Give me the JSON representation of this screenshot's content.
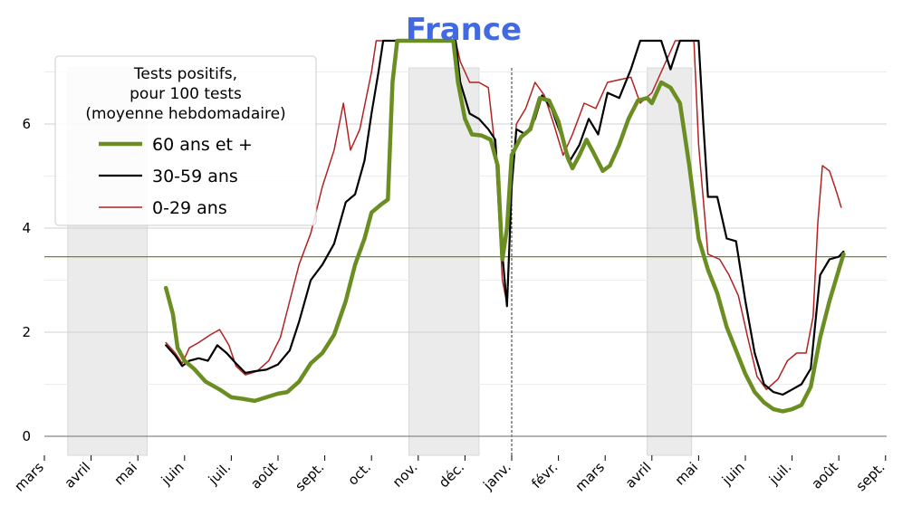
{
  "chart_data": {
    "type": "line",
    "title": "France",
    "xlabel": "",
    "ylabel": "",
    "ylim": [
      0,
      7.5
    ],
    "yticks": [
      0,
      2,
      4,
      6
    ],
    "x_tick_labels": [
      "mars",
      "avril",
      "mai",
      "juin",
      "juil.",
      "août",
      "sept.",
      "oct.",
      "nov.",
      "déc.",
      "janv.",
      "févr.",
      "mars",
      "avril",
      "mai",
      "juin",
      "juil.",
      "août",
      "sept."
    ],
    "legend": {
      "title_lines": [
        "Tests positifs,",
        "pour 100 tests",
        "(moyenne hebdomadaire)"
      ],
      "placement": "top-left"
    },
    "reference_line": {
      "value": 3.45,
      "color": "#6b8e23"
    },
    "year_boundary_month_index": 10,
    "shaded_periods": [
      [
        0.5,
        2.2
      ],
      [
        7.8,
        9.3
      ],
      [
        12.9,
        13.85
      ]
    ],
    "grid": true,
    "series": [
      {
        "name": "60 ans et +",
        "color": "#6b8e23",
        "points": [
          [
            2.6,
            2.85
          ],
          [
            2.75,
            2.35
          ],
          [
            2.85,
            1.7
          ],
          [
            3.0,
            1.45
          ],
          [
            3.2,
            1.3
          ],
          [
            3.45,
            1.05
          ],
          [
            3.75,
            0.9
          ],
          [
            4.0,
            0.75
          ],
          [
            4.25,
            0.72
          ],
          [
            4.5,
            0.68
          ],
          [
            4.75,
            0.75
          ],
          [
            5.0,
            0.82
          ],
          [
            5.2,
            0.85
          ],
          [
            5.45,
            1.05
          ],
          [
            5.7,
            1.4
          ],
          [
            5.95,
            1.6
          ],
          [
            6.2,
            1.95
          ],
          [
            6.45,
            2.6
          ],
          [
            6.65,
            3.3
          ],
          [
            6.85,
            3.8
          ],
          [
            7.0,
            4.3
          ],
          [
            7.2,
            4.45
          ],
          [
            7.35,
            4.55
          ],
          [
            7.45,
            6.8
          ],
          [
            7.55,
            8.0
          ],
          [
            8.75,
            8.0
          ],
          [
            8.85,
            6.8
          ],
          [
            9.0,
            6.1
          ],
          [
            9.15,
            5.8
          ],
          [
            9.35,
            5.78
          ],
          [
            9.55,
            5.7
          ],
          [
            9.7,
            5.2
          ],
          [
            9.8,
            3.4
          ],
          [
            9.9,
            4.0
          ],
          [
            10.0,
            5.4
          ],
          [
            10.2,
            5.75
          ],
          [
            10.4,
            5.9
          ],
          [
            10.6,
            6.5
          ],
          [
            10.8,
            6.45
          ],
          [
            11.0,
            6.05
          ],
          [
            11.2,
            5.35
          ],
          [
            11.3,
            5.15
          ],
          [
            11.45,
            5.4
          ],
          [
            11.6,
            5.7
          ],
          [
            11.75,
            5.45
          ],
          [
            11.95,
            5.1
          ],
          [
            12.1,
            5.2
          ],
          [
            12.3,
            5.6
          ],
          [
            12.5,
            6.1
          ],
          [
            12.7,
            6.45
          ],
          [
            12.9,
            6.5
          ],
          [
            13.0,
            6.4
          ],
          [
            13.2,
            6.8
          ],
          [
            13.4,
            6.7
          ],
          [
            13.6,
            6.4
          ],
          [
            13.8,
            5.2
          ],
          [
            14.0,
            3.8
          ],
          [
            14.2,
            3.2
          ],
          [
            14.4,
            2.75
          ],
          [
            14.6,
            2.1
          ],
          [
            14.8,
            1.65
          ],
          [
            15.0,
            1.2
          ],
          [
            15.2,
            0.85
          ],
          [
            15.4,
            0.65
          ],
          [
            15.6,
            0.52
          ],
          [
            15.8,
            0.48
          ],
          [
            16.0,
            0.52
          ],
          [
            16.2,
            0.6
          ],
          [
            16.4,
            0.95
          ],
          [
            16.6,
            1.9
          ],
          [
            16.8,
            2.6
          ],
          [
            17.0,
            3.2
          ],
          [
            17.1,
            3.5
          ]
        ]
      },
      {
        "name": "30-59 ans",
        "color": "#000000",
        "points": [
          [
            2.6,
            1.75
          ],
          [
            2.8,
            1.55
          ],
          [
            2.95,
            1.35
          ],
          [
            3.1,
            1.45
          ],
          [
            3.3,
            1.5
          ],
          [
            3.5,
            1.45
          ],
          [
            3.7,
            1.75
          ],
          [
            3.9,
            1.6
          ],
          [
            4.1,
            1.4
          ],
          [
            4.3,
            1.22
          ],
          [
            4.5,
            1.25
          ],
          [
            4.75,
            1.28
          ],
          [
            5.0,
            1.38
          ],
          [
            5.25,
            1.65
          ],
          [
            5.45,
            2.2
          ],
          [
            5.7,
            3.0
          ],
          [
            5.95,
            3.3
          ],
          [
            6.2,
            3.7
          ],
          [
            6.45,
            4.5
          ],
          [
            6.65,
            4.65
          ],
          [
            6.85,
            5.3
          ],
          [
            7.0,
            6.2
          ],
          [
            7.15,
            7.0
          ],
          [
            7.25,
            8.0
          ],
          [
            8.8,
            8.0
          ],
          [
            8.9,
            6.8
          ],
          [
            9.1,
            6.2
          ],
          [
            9.3,
            6.1
          ],
          [
            9.5,
            5.9
          ],
          [
            9.65,
            5.7
          ],
          [
            9.8,
            3.5
          ],
          [
            9.9,
            2.5
          ],
          [
            10.0,
            4.8
          ],
          [
            10.1,
            5.9
          ],
          [
            10.3,
            5.8
          ],
          [
            10.5,
            6.1
          ],
          [
            10.65,
            6.55
          ],
          [
            10.85,
            6.3
          ],
          [
            11.05,
            5.8
          ],
          [
            11.25,
            5.3
          ],
          [
            11.45,
            5.6
          ],
          [
            11.65,
            6.1
          ],
          [
            11.85,
            5.8
          ],
          [
            12.05,
            6.6
          ],
          [
            12.3,
            6.5
          ],
          [
            12.55,
            7.05
          ],
          [
            12.75,
            8.0
          ],
          [
            13.2,
            8.0
          ],
          [
            13.4,
            7.05
          ],
          [
            13.6,
            8.0
          ],
          [
            14.0,
            8.0
          ],
          [
            14.1,
            6.0
          ],
          [
            14.2,
            4.6
          ],
          [
            14.4,
            4.6
          ],
          [
            14.6,
            3.8
          ],
          [
            14.8,
            3.75
          ],
          [
            15.0,
            2.6
          ],
          [
            15.2,
            1.6
          ],
          [
            15.4,
            1.0
          ],
          [
            15.6,
            0.85
          ],
          [
            15.8,
            0.8
          ],
          [
            16.0,
            0.9
          ],
          [
            16.2,
            1.0
          ],
          [
            16.4,
            1.3
          ],
          [
            16.6,
            3.1
          ],
          [
            16.8,
            3.4
          ],
          [
            17.0,
            3.45
          ],
          [
            17.1,
            3.55
          ]
        ]
      },
      {
        "name": "0-29 ans",
        "color": "#b22222",
        "points": [
          [
            2.6,
            1.8
          ],
          [
            2.8,
            1.6
          ],
          [
            2.95,
            1.4
          ],
          [
            3.1,
            1.7
          ],
          [
            3.3,
            1.8
          ],
          [
            3.55,
            1.95
          ],
          [
            3.75,
            2.05
          ],
          [
            3.95,
            1.75
          ],
          [
            4.1,
            1.35
          ],
          [
            4.3,
            1.18
          ],
          [
            4.55,
            1.25
          ],
          [
            4.8,
            1.45
          ],
          [
            5.05,
            1.9
          ],
          [
            5.25,
            2.6
          ],
          [
            5.45,
            3.3
          ],
          [
            5.7,
            3.9
          ],
          [
            5.95,
            4.8
          ],
          [
            6.2,
            5.5
          ],
          [
            6.4,
            6.4
          ],
          [
            6.55,
            5.5
          ],
          [
            6.75,
            5.9
          ],
          [
            7.0,
            7.0
          ],
          [
            7.1,
            8.0
          ],
          [
            8.8,
            8.0
          ],
          [
            8.9,
            7.2
          ],
          [
            9.1,
            6.8
          ],
          [
            9.3,
            6.8
          ],
          [
            9.5,
            6.7
          ],
          [
            9.65,
            5.5
          ],
          [
            9.8,
            3.0
          ],
          [
            9.9,
            2.55
          ],
          [
            10.0,
            4.8
          ],
          [
            10.1,
            6.0
          ],
          [
            10.3,
            6.3
          ],
          [
            10.5,
            6.8
          ],
          [
            10.7,
            6.55
          ],
          [
            10.9,
            6.0
          ],
          [
            11.1,
            5.4
          ],
          [
            11.3,
            5.8
          ],
          [
            11.55,
            6.4
          ],
          [
            11.8,
            6.3
          ],
          [
            12.05,
            6.8
          ],
          [
            12.3,
            6.85
          ],
          [
            12.55,
            6.9
          ],
          [
            12.75,
            6.4
          ],
          [
            13.0,
            6.6
          ],
          [
            13.2,
            7.0
          ],
          [
            13.5,
            8.0
          ],
          [
            13.9,
            8.0
          ],
          [
            14.0,
            5.6
          ],
          [
            14.2,
            3.5
          ],
          [
            14.45,
            3.4
          ],
          [
            14.65,
            3.1
          ],
          [
            14.85,
            2.7
          ],
          [
            15.05,
            1.9
          ],
          [
            15.25,
            1.15
          ],
          [
            15.45,
            0.9
          ],
          [
            15.7,
            1.1
          ],
          [
            15.9,
            1.45
          ],
          [
            16.1,
            1.6
          ],
          [
            16.3,
            1.6
          ],
          [
            16.45,
            2.3
          ],
          [
            16.55,
            4.1
          ],
          [
            16.65,
            5.2
          ],
          [
            16.8,
            5.1
          ],
          [
            16.95,
            4.7
          ],
          [
            17.05,
            4.4
          ]
        ]
      }
    ]
  }
}
